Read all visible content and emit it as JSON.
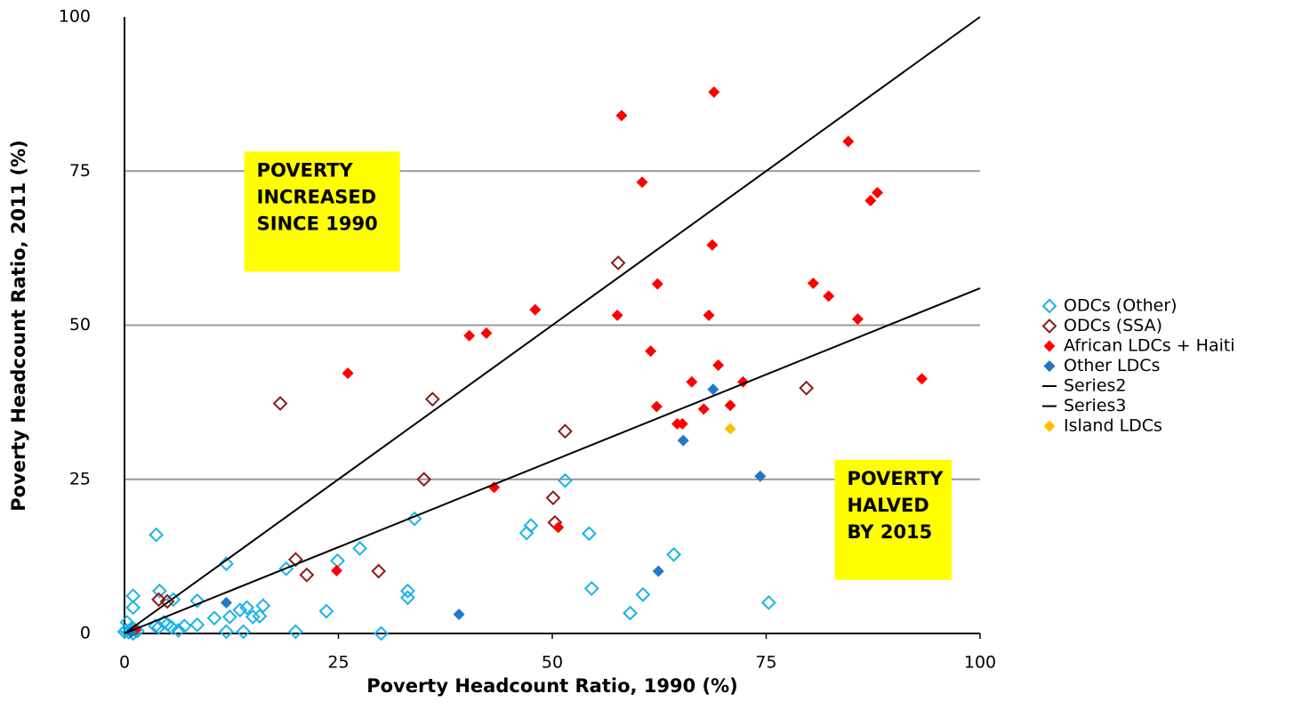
{
  "chart_data": {
    "type": "scatter",
    "xlabel": "Poverty Headcount Ratio, 1990 (%)",
    "ylabel": "Poverty Headcount Ratio, 2011 (%)",
    "xlim": [
      0,
      100
    ],
    "ylim": [
      0,
      100
    ],
    "xticks": [
      0,
      25,
      50,
      75,
      100
    ],
    "yticks": [
      0,
      25,
      50,
      75,
      100
    ],
    "grid": true,
    "legend": "right",
    "annotations": [
      {
        "lines": [
          "POVERTY",
          "INCREASED",
          "SINCE 1990"
        ],
        "color": "#ffff00",
        "x": 14,
        "y": 75
      },
      {
        "lines": [
          "POVERTY",
          "HALVED",
          "BY 2015"
        ],
        "color": "#ffff00",
        "x": 83,
        "y": 25
      }
    ],
    "series": [
      {
        "name": "ODCs (Other)",
        "color": "#1ab2e8",
        "marker": "diamond-open",
        "x": [
          3.7,
          11.9,
          1,
          1,
          4.1,
          5.7,
          8.5,
          10.5,
          12.3,
          13.5,
          14.3,
          15,
          15.8,
          16.2,
          18.9,
          24.9,
          27.5,
          33.9,
          33.1,
          33.1,
          23.6,
          20,
          30,
          11.9,
          13.9,
          47,
          47.5,
          51.5,
          54.3,
          54.6,
          59.1,
          60.6,
          64.2,
          75.3,
          0.3,
          0.2,
          0.5,
          1,
          1.5,
          0.8,
          4,
          4.6,
          5,
          5.5,
          6.3,
          7,
          8.5,
          3.6,
          0,
          1.2
        ],
        "values": [
          16,
          11.3,
          6.1,
          4.2,
          6.9,
          5.5,
          5.3,
          2.5,
          2.7,
          3.8,
          4.2,
          2.7,
          2.8,
          4.5,
          10.5,
          11.8,
          13.8,
          18.6,
          6.9,
          5.8,
          3.6,
          0.3,
          0,
          0.3,
          0.3,
          16.3,
          17.5,
          24.8,
          16.2,
          7.3,
          3.3,
          6.3,
          12.8,
          5,
          1.8,
          0.5,
          0.2,
          0,
          0.4,
          0.8,
          1,
          1.8,
          1.5,
          1,
          0.5,
          1.2,
          1.4,
          1.2,
          0.3,
          0.6
        ]
      },
      {
        "name": "ODCs (SSA)",
        "color": "#8b1a1a",
        "marker": "diamond-open",
        "x": [
          18.2,
          36,
          57.7,
          35,
          51.5,
          20,
          21.3,
          29.7,
          50.1,
          50.3,
          79.7,
          4,
          5
        ],
        "values": [
          37.3,
          38,
          60.1,
          25,
          32.8,
          12,
          9.5,
          10.1,
          22,
          18,
          39.8,
          5.5,
          5.2
        ]
      },
      {
        "name": "African LDCs + Haiti",
        "color": "#ff0000",
        "marker": "diamond",
        "x": [
          58.1,
          68.9,
          60.5,
          84.6,
          87.2,
          88,
          68.7,
          62.3,
          80.5,
          82.3,
          85.7,
          48,
          57.6,
          68.3,
          40.3,
          42.3,
          26.1,
          61.5,
          69.4,
          66.3,
          72.3,
          93.2,
          62.2,
          67.7,
          70.8,
          64.6,
          65.2,
          43.2,
          50.7,
          24.8,
          1.3
        ],
        "values": [
          84,
          87.8,
          73.2,
          79.8,
          70.2,
          71.5,
          63,
          56.7,
          56.8,
          54.7,
          51,
          52.5,
          51.6,
          51.6,
          48.3,
          48.7,
          42.2,
          45.8,
          43.5,
          40.8,
          40.8,
          41.3,
          36.8,
          36.4,
          37,
          34,
          34,
          23.7,
          17.2,
          10.2,
          0.6
        ]
      },
      {
        "name": "Other LDCs",
        "color": "#1f78c8",
        "marker": "diamond",
        "x": [
          68.8,
          65.3,
          74.3,
          62.4,
          39.1,
          11.9,
          0.8
        ],
        "values": [
          39.6,
          31.3,
          25.5,
          10.1,
          3.1,
          5,
          0.2
        ]
      },
      {
        "name": "Series2",
        "color": "#000000",
        "marker": "line",
        "x": [
          0,
          100
        ],
        "values": [
          0,
          100
        ]
      },
      {
        "name": "Series3",
        "color": "#000000",
        "marker": "line",
        "x": [
          0,
          100
        ],
        "values": [
          0,
          56
        ]
      },
      {
        "name": "Island LDCs",
        "color": "#ffc000",
        "marker": "diamond",
        "x": [
          70.8
        ],
        "values": [
          33.2
        ]
      }
    ]
  }
}
